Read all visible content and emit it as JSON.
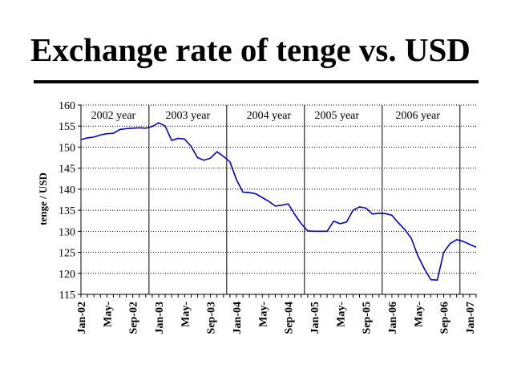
{
  "title": "Exchange rate of tenge vs. USD",
  "chart_data": {
    "type": "line",
    "title": "",
    "xlabel": "",
    "ylabel": "tenge / USD",
    "ylim": [
      115,
      160
    ],
    "yticks": [
      115,
      120,
      125,
      130,
      135,
      140,
      145,
      150,
      155,
      160
    ],
    "xticks": [
      "Jan-02",
      "May-",
      "Sep-02",
      "Jan-03",
      "May-",
      "Sep-03",
      "Jan-04",
      "May-",
      "Sep-04",
      "Jan-05",
      "May-",
      "Sep-05",
      "Jan-06",
      "May-",
      "Sep-06",
      "Jan-07"
    ],
    "grid": "horizontal-dotted",
    "line_color": "#0000cc",
    "year_labels": [
      {
        "label": "2002 year",
        "month": 5
      },
      {
        "label": "2003 year",
        "month": 16.5
      },
      {
        "label": "2004 year",
        "month": 29
      },
      {
        "label": "2005 year",
        "month": 39.5
      },
      {
        "label": "2006 year",
        "month": 52
      }
    ],
    "separators": [
      10.5,
      22.5,
      34.5,
      46.5,
      58.5
    ],
    "series": [
      {
        "x": [
          0,
          1,
          2,
          3,
          4,
          5,
          6,
          7,
          8,
          9,
          10,
          11,
          12,
          13,
          14,
          15,
          16,
          17,
          18,
          19,
          20,
          21,
          22,
          23,
          24,
          25,
          26,
          27,
          28,
          29,
          30,
          31,
          32,
          33,
          34,
          35,
          36,
          37,
          38,
          39,
          40,
          41,
          42,
          43,
          44,
          45,
          46,
          47,
          48,
          49,
          50,
          51,
          52,
          53,
          54,
          55,
          56,
          57,
          58,
          59,
          60,
          61
        ],
        "values": [
          151.8,
          152.2,
          152.4,
          152.9,
          153.2,
          153.3,
          154.2,
          154.4,
          154.5,
          154.6,
          154.5,
          154.9,
          155.8,
          155.0,
          151.6,
          152.1,
          151.9,
          150.2,
          147.5,
          146.9,
          147.4,
          148.9,
          147.8,
          146.5,
          142.3,
          139.3,
          139.2,
          138.9,
          138.0,
          137.1,
          136.0,
          136.2,
          136.5,
          134.0,
          131.8,
          130.1,
          130.0,
          130.0,
          130.0,
          132.4,
          131.8,
          132.2,
          135.0,
          135.8,
          135.5,
          134.1,
          134.3,
          134.2,
          133.8,
          132.0,
          130.4,
          128.3,
          124.2,
          121.1,
          118.5,
          118.4,
          125.0,
          127.1,
          128.0,
          127.6,
          126.9,
          126.2
        ]
      }
    ]
  }
}
